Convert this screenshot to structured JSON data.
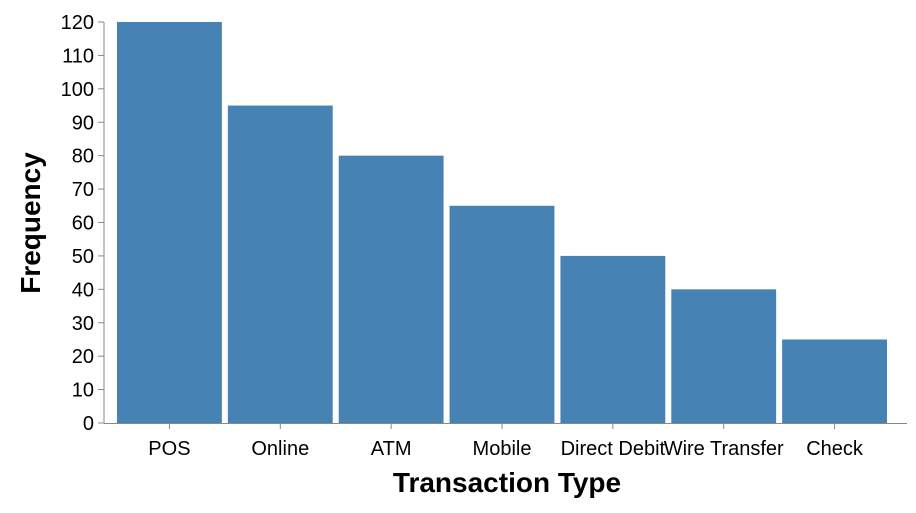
{
  "chart_data": {
    "type": "bar",
    "categories": [
      "POS",
      "Online",
      "ATM",
      "Mobile",
      "Direct Debit",
      "Wire Transfer",
      "Check"
    ],
    "values": [
      120,
      95,
      80,
      65,
      50,
      40,
      25
    ],
    "xlabel": "Transaction Type",
    "ylabel": "Frequency",
    "ylim": [
      0,
      120
    ],
    "yticks": [
      0,
      10,
      20,
      30,
      40,
      50,
      60,
      70,
      80,
      90,
      100,
      110,
      120
    ],
    "grid": false,
    "legend": "none",
    "colors": {
      "bar": "#4682b4",
      "axis": "#888888",
      "text": "#000000"
    }
  }
}
